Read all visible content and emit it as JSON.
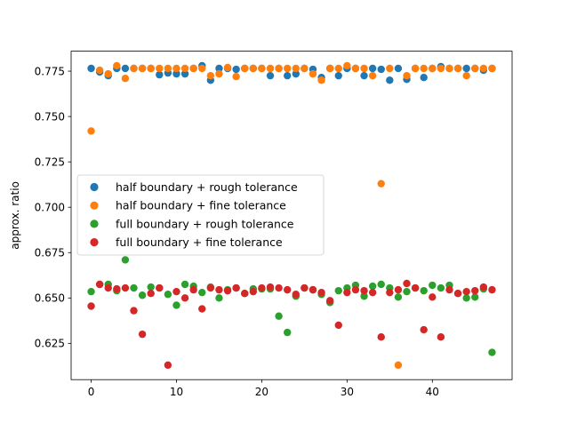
{
  "chart_data": {
    "type": "scatter",
    "title": "",
    "xlabel": "",
    "ylabel": "approx. ratio",
    "xlim": [
      -2.35,
      49.35
    ],
    "ylim": [
      0.605,
      0.786
    ],
    "xticks": [
      0,
      10,
      20,
      30,
      40
    ],
    "xtick_labels": [
      "0",
      "10",
      "20",
      "30",
      "40"
    ],
    "yticks": [
      0.625,
      0.65,
      0.675,
      0.7,
      0.725,
      0.75,
      0.775
    ],
    "ytick_labels": [
      "0.625",
      "0.650",
      "0.675",
      "0.700",
      "0.725",
      "0.750",
      "0.775"
    ],
    "grid": false,
    "legend_position": "center-left",
    "series": [
      {
        "name": "half boundary + rough tolerance",
        "color": "#1f77b4",
        "x": [
          0,
          1,
          2,
          3,
          4,
          5,
          6,
          7,
          8,
          9,
          10,
          11,
          12,
          13,
          14,
          15,
          16,
          17,
          18,
          19,
          20,
          21,
          22,
          23,
          24,
          25,
          26,
          27,
          28,
          29,
          30,
          31,
          32,
          33,
          34,
          35,
          36,
          37,
          38,
          39,
          40,
          41,
          42,
          43,
          44,
          45,
          46,
          47
        ],
        "y": [
          0.7765,
          0.7745,
          0.7725,
          0.7765,
          0.7765,
          0.7765,
          0.7765,
          0.7765,
          0.773,
          0.774,
          0.7735,
          0.7735,
          0.7765,
          0.778,
          0.77,
          0.7765,
          0.7765,
          0.776,
          0.7765,
          0.7765,
          0.7765,
          0.7725,
          0.7765,
          0.7725,
          0.7735,
          0.7765,
          0.776,
          0.7715,
          0.7765,
          0.7725,
          0.7765,
          0.7765,
          0.7725,
          0.7765,
          0.776,
          0.77,
          0.7765,
          0.7705,
          0.7765,
          0.7715,
          0.7765,
          0.7775,
          0.7765,
          0.7765,
          0.7765,
          0.7765,
          0.7755,
          0.7765
        ]
      },
      {
        "name": "half boundary + fine tolerance",
        "color": "#ff7f0e",
        "x": [
          0,
          1,
          2,
          3,
          4,
          5,
          6,
          7,
          8,
          9,
          10,
          11,
          12,
          13,
          14,
          15,
          16,
          17,
          18,
          19,
          20,
          21,
          22,
          23,
          24,
          25,
          26,
          27,
          28,
          29,
          30,
          31,
          32,
          33,
          34,
          35,
          36,
          37,
          38,
          39,
          40,
          41,
          42,
          43,
          44,
          45,
          46,
          47
        ],
        "y": [
          0.742,
          0.7755,
          0.7735,
          0.778,
          0.771,
          0.7765,
          0.7765,
          0.7765,
          0.7765,
          0.7765,
          0.7765,
          0.7765,
          0.7765,
          0.7765,
          0.7725,
          0.7735,
          0.777,
          0.772,
          0.7765,
          0.7765,
          0.7765,
          0.7765,
          0.7765,
          0.7765,
          0.7765,
          0.7765,
          0.7735,
          0.77,
          0.7765,
          0.7765,
          0.778,
          0.7765,
          0.7765,
          0.7725,
          0.713,
          0.7765,
          0.613,
          0.7725,
          0.7765,
          0.7765,
          0.7765,
          0.7765,
          0.7765,
          0.7765,
          0.7725,
          0.7765,
          0.7765,
          0.7765
        ]
      },
      {
        "name": "full boundary + rough tolerance",
        "color": "#2ca02c",
        "x": [
          0,
          1,
          2,
          3,
          4,
          5,
          6,
          7,
          8,
          9,
          10,
          11,
          12,
          13,
          14,
          15,
          16,
          17,
          18,
          19,
          20,
          21,
          22,
          23,
          24,
          25,
          26,
          27,
          28,
          29,
          30,
          31,
          32,
          33,
          34,
          35,
          36,
          37,
          38,
          39,
          40,
          41,
          42,
          43,
          44,
          45,
          46,
          47
        ],
        "y": [
          0.6535,
          0.6575,
          0.6575,
          0.654,
          0.671,
          0.6555,
          0.6515,
          0.656,
          0.6555,
          0.652,
          0.646,
          0.6575,
          0.6565,
          0.653,
          0.656,
          0.65,
          0.6545,
          0.6555,
          0.6525,
          0.655,
          0.655,
          0.655,
          0.64,
          0.631,
          0.651,
          0.6555,
          0.6545,
          0.652,
          0.6475,
          0.654,
          0.6555,
          0.657,
          0.651,
          0.6565,
          0.6575,
          0.6555,
          0.6505,
          0.6535,
          0.6555,
          0.654,
          0.657,
          0.6555,
          0.657,
          0.6525,
          0.65,
          0.6505,
          0.655,
          0.62
        ]
      },
      {
        "name": "full boundary + fine tolerance",
        "color": "#d62728",
        "x": [
          0,
          1,
          2,
          3,
          4,
          5,
          6,
          7,
          8,
          9,
          10,
          11,
          12,
          13,
          14,
          15,
          16,
          17,
          18,
          19,
          20,
          21,
          22,
          23,
          24,
          25,
          26,
          27,
          28,
          29,
          30,
          31,
          32,
          33,
          34,
          35,
          36,
          37,
          38,
          39,
          40,
          41,
          42,
          43,
          44,
          45,
          46,
          47
        ],
        "y": [
          0.6455,
          0.6575,
          0.6555,
          0.655,
          0.6555,
          0.643,
          0.63,
          0.6525,
          0.6555,
          0.613,
          0.6535,
          0.65,
          0.6545,
          0.644,
          0.6555,
          0.6545,
          0.654,
          0.6555,
          0.6525,
          0.6535,
          0.6555,
          0.656,
          0.6555,
          0.6545,
          0.652,
          0.6555,
          0.6545,
          0.653,
          0.6485,
          0.635,
          0.653,
          0.6545,
          0.654,
          0.653,
          0.6285,
          0.653,
          0.6545,
          0.658,
          0.6555,
          0.6325,
          0.6505,
          0.6285,
          0.6545,
          0.6525,
          0.6535,
          0.654,
          0.656,
          0.6545
        ]
      }
    ]
  }
}
